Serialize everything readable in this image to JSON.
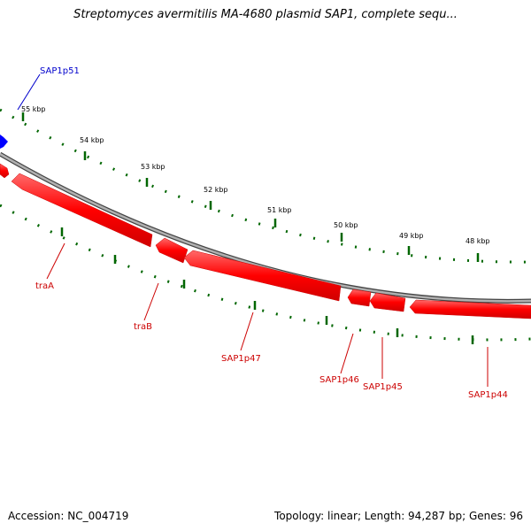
{
  "title": "Streptomyces avermitilis MA-4680 plasmid SAP1, complete sequ...",
  "footer": {
    "accession": "Accession: NC_004719",
    "summary": "Topology: linear; Length: 94,287 bp; Genes: 96"
  },
  "colors": {
    "backbone": "#8c8c8c",
    "forward_gene": "#0000ff",
    "reverse_gene": "#ff0000",
    "ticks": "#006600"
  },
  "ticks": [
    {
      "kbp": 55,
      "label": "55 kbp"
    },
    {
      "kbp": 54,
      "label": "54 kbp"
    },
    {
      "kbp": 53,
      "label": "53 kbp"
    },
    {
      "kbp": 52,
      "label": "52 kbp"
    },
    {
      "kbp": 51,
      "label": "51 kbp"
    },
    {
      "kbp": 50,
      "label": "50 kbp"
    },
    {
      "kbp": 49,
      "label": "49 kbp"
    },
    {
      "kbp": 48,
      "label": "48 kbp"
    }
  ],
  "genes": [
    {
      "name": "SAP1p51",
      "strand": "forward"
    },
    {
      "name": "traA",
      "strand": "reverse"
    },
    {
      "name": "traB",
      "strand": "reverse"
    },
    {
      "name": "SAP1p47",
      "strand": "reverse"
    },
    {
      "name": "SAP1p46",
      "strand": "reverse"
    },
    {
      "name": "SAP1p45",
      "strand": "reverse"
    },
    {
      "name": "SAP1p44",
      "strand": "reverse"
    }
  ]
}
